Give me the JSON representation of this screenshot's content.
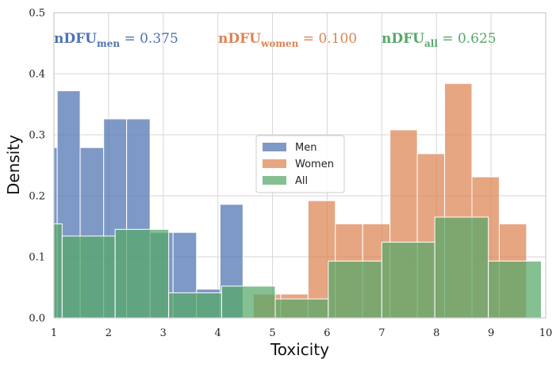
{
  "chart_data": {
    "type": "bar",
    "xlabel": "Toxicity",
    "ylabel": "Density",
    "xlim": [
      1,
      10
    ],
    "ylim": [
      0,
      0.5
    ],
    "xticks": [
      "1",
      "2",
      "3",
      "4",
      "5",
      "6",
      "7",
      "8",
      "9",
      "10"
    ],
    "yticks": [
      "0.0",
      "0.1",
      "0.2",
      "0.3",
      "0.4",
      "0.5"
    ],
    "grid": true,
    "legend": {
      "placement": "center",
      "entries": [
        "Men",
        "Women",
        "All"
      ]
    },
    "colors": {
      "men": "#4c72b0",
      "women": "#dd8452",
      "all": "#55a868"
    },
    "annotations": [
      {
        "base": "nDFU",
        "sub": "men",
        "rest": " = 0.375",
        "color": "#4c72b0"
      },
      {
        "base": "nDFU",
        "sub": "women",
        "rest": " = 0.100",
        "color": "#dd8452"
      },
      {
        "base": "nDFU",
        "sub": "all",
        "rest": " = 0.625",
        "color": "#55a868"
      }
    ],
    "series": [
      {
        "name": "Men",
        "bins": [
          {
            "x0": 0.95,
            "x1": 1.06,
            "value": 0.279
          },
          {
            "x0": 1.06,
            "x1": 1.48,
            "value": 0.372
          },
          {
            "x0": 1.48,
            "x1": 1.91,
            "value": 0.279
          },
          {
            "x0": 1.91,
            "x1": 2.33,
            "value": 0.326
          },
          {
            "x0": 2.33,
            "x1": 2.76,
            "value": 0.326
          },
          {
            "x0": 2.76,
            "x1": 3.18,
            "value": 0.14
          },
          {
            "x0": 3.18,
            "x1": 3.61,
            "value": 0.14
          },
          {
            "x0": 3.61,
            "x1": 4.04,
            "value": 0.047
          },
          {
            "x0": 4.04,
            "x1": 4.46,
            "value": 0.186
          }
        ]
      },
      {
        "name": "Women",
        "bins": [
          {
            "x0": 4.65,
            "x1": 5.15,
            "value": 0.039
          },
          {
            "x0": 5.15,
            "x1": 5.65,
            "value": 0.039
          },
          {
            "x0": 5.65,
            "x1": 6.15,
            "value": 0.192
          },
          {
            "x0": 6.15,
            "x1": 6.65,
            "value": 0.154
          },
          {
            "x0": 6.65,
            "x1": 7.15,
            "value": 0.154
          },
          {
            "x0": 7.15,
            "x1": 7.65,
            "value": 0.308
          },
          {
            "x0": 7.65,
            "x1": 8.15,
            "value": 0.269
          },
          {
            "x0": 8.15,
            "x1": 8.65,
            "value": 0.384
          },
          {
            "x0": 8.65,
            "x1": 9.15,
            "value": 0.231
          },
          {
            "x0": 9.15,
            "x1": 9.65,
            "value": 0.154
          }
        ]
      },
      {
        "name": "All",
        "bins": [
          {
            "x0": 0.95,
            "x1": 1.15,
            "value": 0.154
          },
          {
            "x0": 1.15,
            "x1": 2.12,
            "value": 0.134
          },
          {
            "x0": 2.12,
            "x1": 3.1,
            "value": 0.145
          },
          {
            "x0": 3.1,
            "x1": 4.07,
            "value": 0.041
          },
          {
            "x0": 4.07,
            "x1": 5.05,
            "value": 0.052
          },
          {
            "x0": 5.05,
            "x1": 6.02,
            "value": 0.031
          },
          {
            "x0": 6.02,
            "x1": 7.0,
            "value": 0.093
          },
          {
            "x0": 7.0,
            "x1": 7.97,
            "value": 0.124
          },
          {
            "x0": 7.97,
            "x1": 8.95,
            "value": 0.165
          },
          {
            "x0": 8.95,
            "x1": 9.92,
            "value": 0.093
          }
        ]
      }
    ]
  }
}
